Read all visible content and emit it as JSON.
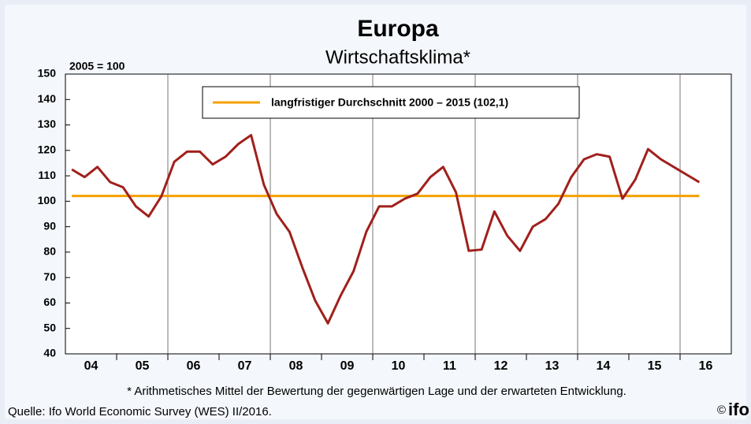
{
  "chart_data": {
    "type": "line",
    "title": "Europa",
    "subtitle": "Wirtschaftsklima*",
    "unit_label": "2005 = 100",
    "x_labels": [
      "04",
      "05",
      "06",
      "07",
      "08",
      "09",
      "10",
      "11",
      "12",
      "13",
      "14",
      "15",
      "16"
    ],
    "series": [
      {
        "name": "Wirtschaftsklima",
        "color": "#a0201c",
        "values": [
          112.5,
          109.5,
          113.5,
          107.5,
          105.5,
          98,
          94,
          102,
          115.5,
          119.5,
          119.5,
          114.5,
          117.5,
          122.5,
          126,
          106.5,
          95,
          88,
          74,
          61,
          52,
          63,
          72.5,
          88,
          98,
          98,
          101,
          103,
          109.5,
          113.5,
          103.5,
          80.5,
          81,
          96,
          86.5,
          80.5,
          90,
          93,
          99,
          109.5,
          116.5,
          118.5,
          117.5,
          101,
          108.5,
          120.5,
          116.5,
          113.5,
          110.5,
          107.5
        ]
      }
    ],
    "average": {
      "name": "langfristiger Durchschnitt 2000 – 2015 (102,1)",
      "value": 102.1,
      "color": "#f5a000"
    },
    "ylim": [
      40,
      150
    ],
    "yticks": [
      40,
      50,
      60,
      70,
      80,
      90,
      100,
      110,
      120,
      130,
      140,
      150
    ],
    "footnote": "* Arithmetisches Mittel der Bewertung der gegenwärtigen Lage und der erwarteten Entwicklung.",
    "source": "Quelle: Ifo World Economic Survey (WES) II/2016.",
    "copyright": "©",
    "logo": "ifo"
  }
}
